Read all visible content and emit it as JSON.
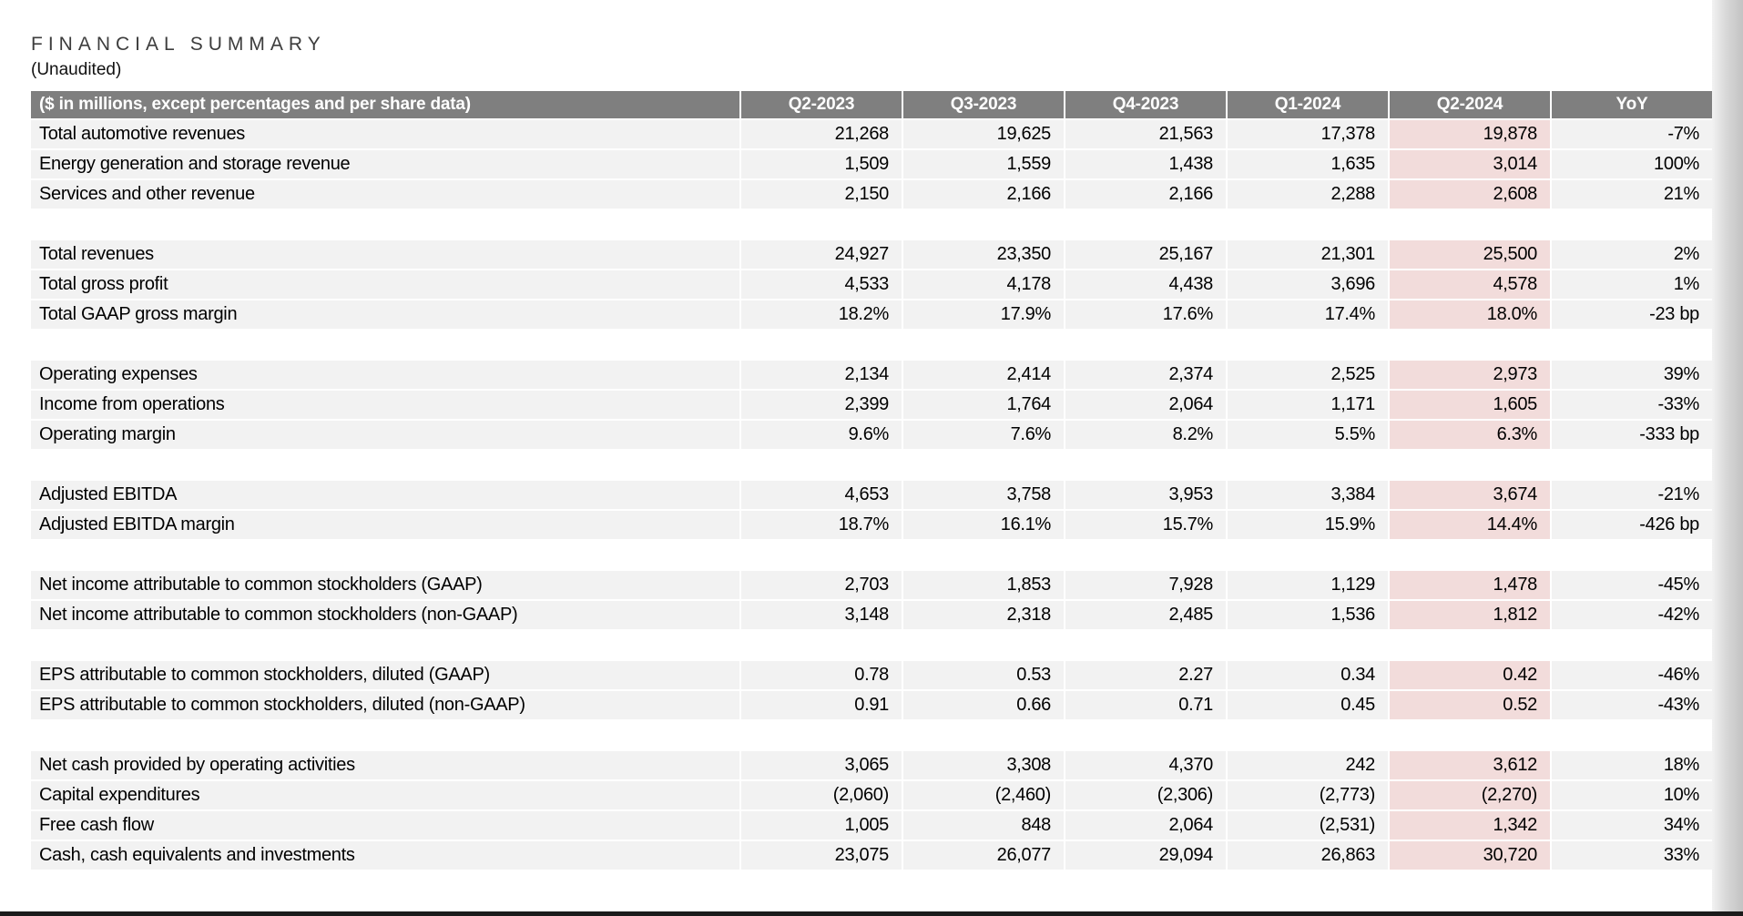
{
  "page": {
    "title": "FINANCIAL SUMMARY",
    "subtitle": "(Unaudited)"
  },
  "colors": {
    "header_bg": "#7f7f7f",
    "header_text": "#ffffff",
    "row_bg": "#f2f2f2",
    "highlight_bg": "#f2dcdb",
    "title_text": "#3d3d3d",
    "body_text": "#000000"
  },
  "table": {
    "header": {
      "label": "($ in millions, except percentages and per share data)",
      "columns": [
        "Q2-2023",
        "Q3-2023",
        "Q4-2023",
        "Q1-2024",
        "Q2-2024",
        "YoY"
      ]
    },
    "highlight_column_index": 4,
    "sections": [
      {
        "rows": [
          {
            "label": "Total automotive revenues",
            "values": [
              "21,268",
              "19,625",
              "21,563",
              "17,378",
              "19,878",
              "-7%"
            ]
          },
          {
            "label": "Energy generation and storage revenue",
            "values": [
              "1,509",
              "1,559",
              "1,438",
              "1,635",
              "3,014",
              "100%"
            ]
          },
          {
            "label": "Services and other revenue",
            "values": [
              "2,150",
              "2,166",
              "2,166",
              "2,288",
              "2,608",
              "21%"
            ]
          }
        ]
      },
      {
        "rows": [
          {
            "label": "Total revenues",
            "values": [
              "24,927",
              "23,350",
              "25,167",
              "21,301",
              "25,500",
              "2%"
            ]
          },
          {
            "label": "Total gross profit",
            "values": [
              "4,533",
              "4,178",
              "4,438",
              "3,696",
              "4,578",
              "1%"
            ]
          },
          {
            "label": "Total GAAP gross margin",
            "values": [
              "18.2%",
              "17.9%",
              "17.6%",
              "17.4%",
              "18.0%",
              "-23 bp"
            ]
          }
        ]
      },
      {
        "rows": [
          {
            "label": "Operating expenses",
            "values": [
              "2,134",
              "2,414",
              "2,374",
              "2,525",
              "2,973",
              "39%"
            ]
          },
          {
            "label": "Income from operations",
            "values": [
              "2,399",
              "1,764",
              "2,064",
              "1,171",
              "1,605",
              "-33%"
            ]
          },
          {
            "label": "Operating margin",
            "values": [
              "9.6%",
              "7.6%",
              "8.2%",
              "5.5%",
              "6.3%",
              "-333 bp"
            ]
          }
        ]
      },
      {
        "rows": [
          {
            "label": "Adjusted EBITDA",
            "values": [
              "4,653",
              "3,758",
              "3,953",
              "3,384",
              "3,674",
              "-21%"
            ]
          },
          {
            "label": "Adjusted EBITDA margin",
            "values": [
              "18.7%",
              "16.1%",
              "15.7%",
              "15.9%",
              "14.4%",
              "-426 bp"
            ]
          }
        ]
      },
      {
        "rows": [
          {
            "label": "Net income attributable to common stockholders (GAAP)",
            "values": [
              "2,703",
              "1,853",
              "7,928",
              "1,129",
              "1,478",
              "-45%"
            ]
          },
          {
            "label": "Net income attributable to common stockholders (non-GAAP)",
            "values": [
              "3,148",
              "2,318",
              "2,485",
              "1,536",
              "1,812",
              "-42%"
            ]
          }
        ]
      },
      {
        "rows": [
          {
            "label": "EPS attributable to common stockholders, diluted (GAAP)",
            "values": [
              "0.78",
              "0.53",
              "2.27",
              "0.34",
              "0.42",
              "-46%"
            ]
          },
          {
            "label": "EPS attributable to common stockholders, diluted (non-GAAP)",
            "values": [
              "0.91",
              "0.66",
              "0.71",
              "0.45",
              "0.52",
              "-43%"
            ]
          }
        ]
      },
      {
        "rows": [
          {
            "label": "Net cash provided by operating activities",
            "values": [
              "3,065",
              "3,308",
              "4,370",
              "242",
              "3,612",
              "18%"
            ]
          },
          {
            "label": "Capital expenditures",
            "values": [
              "(2,060)",
              "(2,460)",
              "(2,306)",
              "(2,773)",
              "(2,270)",
              "10%"
            ]
          },
          {
            "label": "Free cash flow",
            "values": [
              "1,005",
              "848",
              "2,064",
              "(2,531)",
              "1,342",
              "34%"
            ]
          },
          {
            "label": "Cash, cash equivalents and investments",
            "values": [
              "23,075",
              "26,077",
              "29,094",
              "26,863",
              "30,720",
              "33%"
            ]
          }
        ]
      }
    ]
  }
}
